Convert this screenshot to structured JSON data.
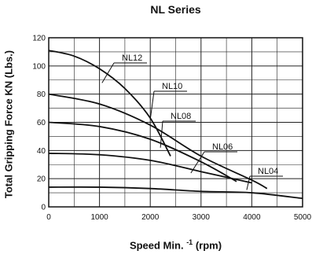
{
  "chart_data": {
    "type": "line",
    "title": "NL Series",
    "xlabel_main": "Speed Min.",
    "xlabel_exp": "-1",
    "xlabel_unit": "(rpm)",
    "ylabel": "Total Gripping Force KN (Lbs.)",
    "xlim": [
      0,
      5000
    ],
    "ylim": [
      0,
      120
    ],
    "x_ticks": [
      "0",
      "1000",
      "2000",
      "3000",
      "4000",
      "5000"
    ],
    "y_ticks": [
      "0",
      "20",
      "40",
      "60",
      "80",
      "100",
      "120"
    ],
    "grid": true,
    "series": [
      {
        "name": "NL12",
        "x": [
          0,
          500,
          1000,
          1500,
          2000,
          2400
        ],
        "y": [
          111,
          107,
          98,
          84,
          63,
          36
        ]
      },
      {
        "name": "NL10",
        "x": [
          0,
          1000,
          2000,
          3000,
          4000,
          4300
        ],
        "y": [
          80,
          73,
          58,
          36,
          19,
          13
        ]
      },
      {
        "name": "NL08",
        "x": [
          0,
          1000,
          2000,
          3000,
          3700
        ],
        "y": [
          60,
          57,
          48,
          32,
          18
        ]
      },
      {
        "name": "NL06",
        "x": [
          0,
          1000,
          2000,
          3000,
          4000
        ],
        "y": [
          38,
          37,
          33,
          25,
          17
        ]
      },
      {
        "name": "NL04",
        "x": [
          0,
          1000,
          2000,
          3000,
          4000,
          5000
        ],
        "y": [
          14,
          14,
          13,
          11,
          10,
          6
        ]
      }
    ]
  }
}
